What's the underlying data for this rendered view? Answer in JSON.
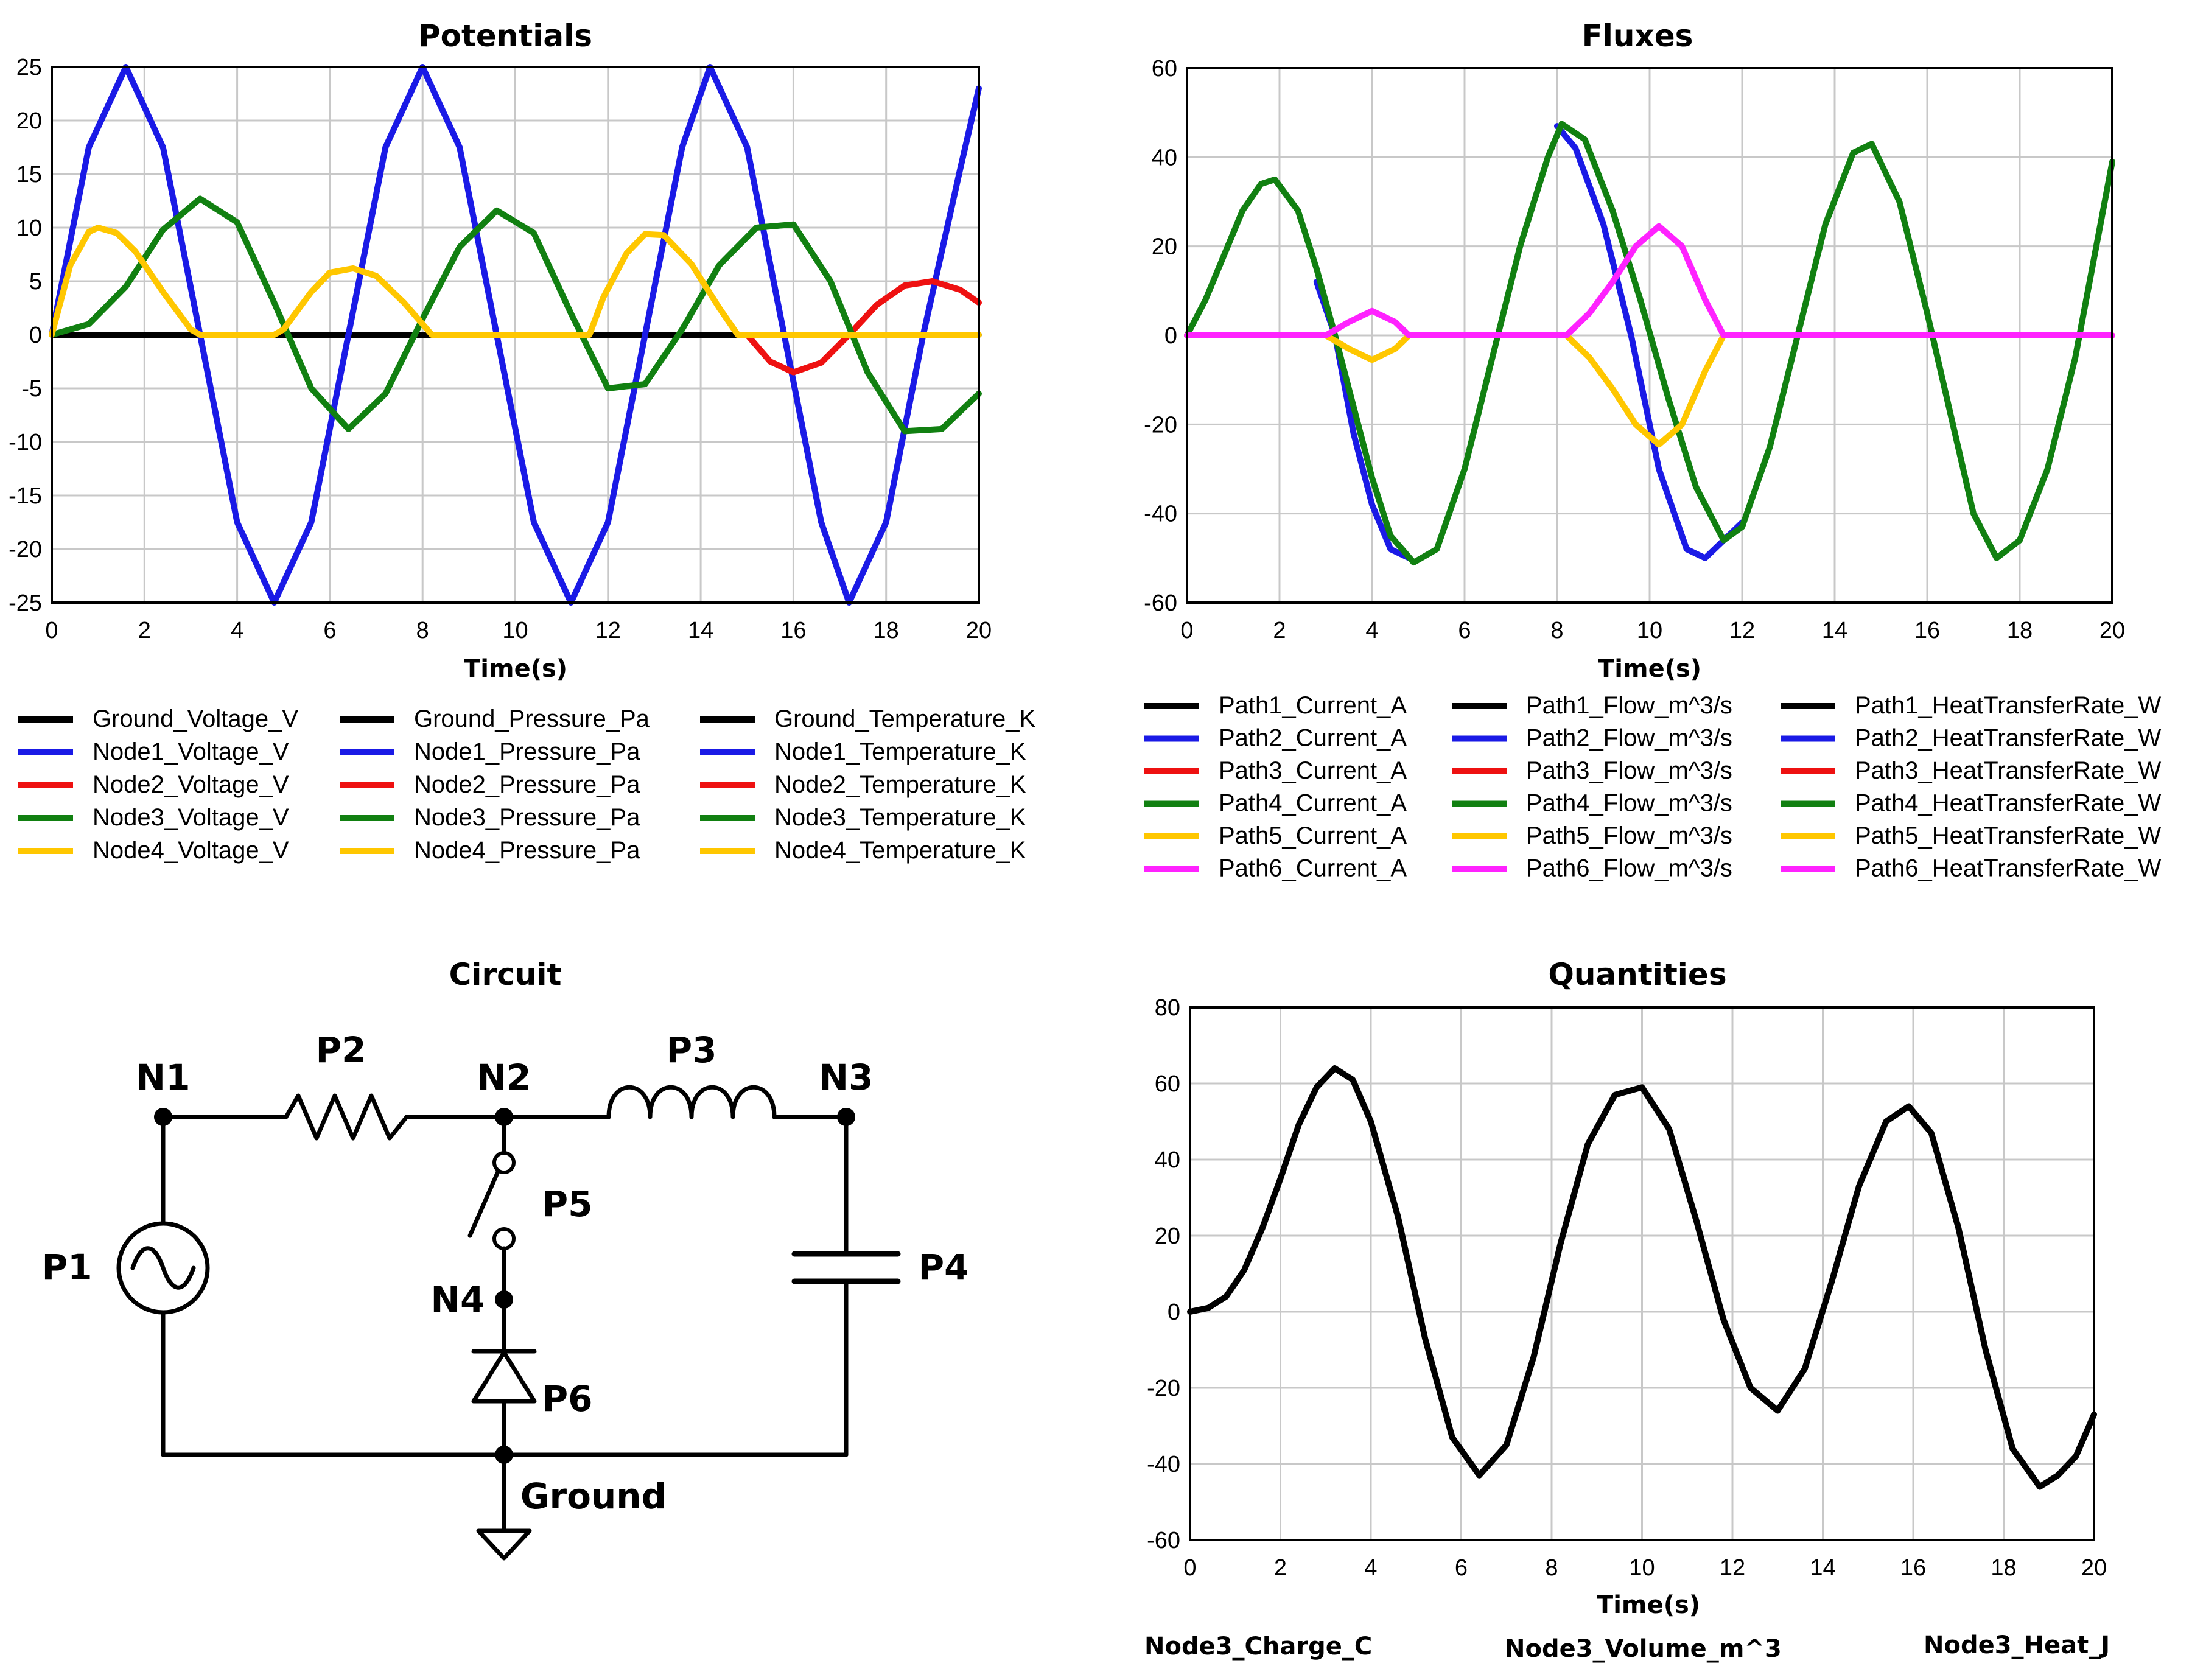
{
  "chart_data": [
    {
      "type": "line",
      "title": "Potentials",
      "xlabel": "Time(s)",
      "ylabel": "",
      "xlim": [
        0,
        20
      ],
      "ylim": [
        -25,
        25
      ],
      "xticks": [
        "0",
        "2",
        "4",
        "6",
        "8",
        "10",
        "12",
        "14",
        "16",
        "18",
        "20"
      ],
      "yticks": [
        "25",
        "20",
        "15",
        "10",
        "5",
        "0",
        "-5",
        "-10",
        "-15",
        "-20",
        "-25"
      ],
      "grid": true,
      "legend_columns": [
        [
          "Ground_Voltage_V",
          "Node1_Voltage_V",
          "Node2_Voltage_V",
          "Node3_Voltage_V",
          "Node4_Voltage_V"
        ],
        [
          "Ground_Pressure_Pa",
          "Node1_Pressure_Pa",
          "Node2_Pressure_Pa",
          "Node3_Pressure_Pa",
          "Node4_Pressure_Pa"
        ],
        [
          "Ground_Temperature_K",
          "Node1_Temperature_K",
          "Node2_Temperature_K",
          "Node3_Temperature_K",
          "Node4_Temperature_K"
        ]
      ],
      "legend_colors": [
        "#000000",
        "#1a1ae6",
        "#ee1111",
        "#118011",
        "#ffc700"
      ],
      "series": [
        {
          "color": "#000000",
          "x": [
            0,
            20
          ],
          "y": [
            0,
            0
          ]
        },
        {
          "color": "#1a1ae6",
          "x": [
            0,
            0.8,
            1.6,
            2.4,
            3.2,
            4.0,
            4.8,
            5.6,
            6.4,
            7.2,
            8.0,
            8.8,
            9.6,
            10.4,
            11.2,
            12.0,
            12.8,
            13.6,
            14.2,
            15.0,
            15.8,
            16.6,
            17.2,
            18.0,
            18.8,
            19.6,
            20.0
          ],
          "y": [
            0,
            17.5,
            25,
            17.5,
            0,
            -17.5,
            -25,
            -17.5,
            0,
            17.5,
            25,
            17.5,
            0,
            -17.5,
            -25,
            -17.5,
            0,
            17.5,
            25,
            17.5,
            0,
            -17.5,
            -25,
            -17.5,
            0,
            15.5,
            23
          ]
        },
        {
          "color": "#ee1111",
          "x": [
            15.0,
            15.5,
            16.0,
            16.6,
            17.2,
            17.8,
            18.4,
            19.0,
            19.6,
            20.0
          ],
          "y": [
            0,
            -2.5,
            -3.5,
            -2.6,
            0,
            2.8,
            4.6,
            5.0,
            4.2,
            3.0
          ]
        },
        {
          "color": "#118011",
          "x": [
            0,
            0.8,
            1.6,
            2.4,
            3.2,
            4.0,
            4.8,
            5.6,
            6.4,
            7.2,
            8.0,
            8.8,
            9.6,
            10.4,
            11.2,
            12.0,
            12.8,
            13.6,
            14.4,
            15.2,
            16.0,
            16.8,
            17.6,
            18.4,
            19.2,
            20.0
          ],
          "y": [
            0,
            1.0,
            4.5,
            9.8,
            12.7,
            10.5,
            3.0,
            -5.0,
            -8.8,
            -5.5,
            1.5,
            8.2,
            11.6,
            9.5,
            2.0,
            -5.0,
            -4.6,
            0.5,
            6.5,
            10.0,
            10.3,
            5.0,
            -3.5,
            -9.0,
            -8.8,
            -5.5
          ]
        },
        {
          "color": "#ffc700",
          "x": [
            0,
            0.4,
            0.8,
            1.0,
            1.4,
            1.8,
            2.4,
            3.0,
            3.2,
            4.8,
            5.0,
            5.6,
            6.0,
            6.5,
            7.0,
            7.6,
            8.2,
            11.6,
            11.9,
            12.4,
            12.8,
            13.2,
            13.8,
            14.4,
            14.8,
            20.0
          ],
          "y": [
            0,
            6.5,
            9.6,
            10.0,
            9.5,
            7.8,
            4.0,
            0.5,
            0,
            0,
            0.5,
            4.0,
            5.8,
            6.2,
            5.5,
            3.0,
            0,
            0,
            3.5,
            7.6,
            9.4,
            9.3,
            6.6,
            2.5,
            0,
            0
          ]
        }
      ]
    },
    {
      "type": "line",
      "title": "Fluxes",
      "xlabel": "Time(s)",
      "ylabel": "",
      "xlim": [
        0,
        20
      ],
      "ylim": [
        -60,
        60
      ],
      "xticks": [
        "0",
        "2",
        "4",
        "6",
        "8",
        "10",
        "12",
        "14",
        "16",
        "18",
        "20"
      ],
      "yticks": [
        "60",
        "40",
        "20",
        "0",
        "-20",
        "-40",
        "-60"
      ],
      "grid": true,
      "legend_columns": [
        [
          "Path1_Current_A",
          "Path2_Current_A",
          "Path3_Current_A",
          "Path4_Current_A",
          "Path5_Current_A",
          "Path6_Current_A"
        ],
        [
          "Path1_Flow_m^3/s",
          "Path2_Flow_m^3/s",
          "Path3_Flow_m^3/s",
          "Path4_Flow_m^3/s",
          "Path5_Flow_m^3/s",
          "Path6_Flow_m^3/s"
        ],
        [
          "Path1_HeatTransferRate_W",
          "Path2_HeatTransferRate_W",
          "Path3_HeatTransferRate_W",
          "Path4_HeatTransferRate_W",
          "Path5_HeatTransferRate_W",
          "Path6_HeatTransferRate_W"
        ]
      ],
      "legend_colors": [
        "#000000",
        "#1a1ae6",
        "#ee1111",
        "#118011",
        "#ffc700",
        "#ff22ff"
      ],
      "series": [
        {
          "color": "#1a1ae6",
          "x": [
            8.0,
            8.4,
            9.0,
            9.6,
            10.2,
            10.8,
            11.2,
            11.6,
            12.0
          ],
          "y": [
            47,
            42,
            25,
            0,
            -30,
            -48,
            -50,
            -46,
            -42
          ]
        },
        {
          "color": "#1a1ae6",
          "x": [
            2.8,
            3.2,
            3.6,
            4.0,
            4.4,
            4.8
          ],
          "y": [
            12,
            0,
            -22,
            -38,
            -48,
            -50
          ]
        },
        {
          "color": "#118011",
          "x": [
            0,
            0.4,
            0.8,
            1.2,
            1.6,
            1.9,
            2.4,
            2.8,
            3.2,
            3.6,
            4.0,
            4.4,
            4.9,
            5.4,
            6.0,
            6.6,
            7.2,
            7.8,
            8.1,
            8.6,
            9.2,
            9.8,
            10.4,
            11.0,
            11.6,
            12.0,
            12.6,
            13.2,
            13.8,
            14.4,
            14.8,
            15.4,
            16.0,
            16.6,
            17.0,
            17.5,
            18.0,
            18.6,
            19.2,
            20.0
          ],
          "y": [
            0,
            8,
            18,
            28,
            34,
            35,
            28,
            15,
            0,
            -16,
            -32,
            -45,
            -51,
            -48,
            -30,
            -5,
            20,
            40,
            47.5,
            44,
            28,
            8,
            -14,
            -34,
            -46,
            -43,
            -25,
            0,
            25,
            41,
            43,
            30,
            5,
            -22,
            -40,
            -50,
            -46,
            -30,
            -5,
            39
          ]
        },
        {
          "color": "#ffc700",
          "x": [
            0,
            3.0,
            3.5,
            4.0,
            4.5,
            4.8,
            8.2,
            8.7,
            9.2,
            9.7,
            10.2,
            10.7,
            11.2,
            11.6,
            20.0
          ],
          "y": [
            0,
            0,
            -3,
            -5.5,
            -3,
            0,
            0,
            -5,
            -12,
            -20,
            -24.5,
            -20,
            -8,
            0,
            0
          ]
        },
        {
          "color": "#ff22ff",
          "x": [
            0,
            3.0,
            3.5,
            4.0,
            4.5,
            4.8,
            8.2,
            8.7,
            9.2,
            9.7,
            10.2,
            10.7,
            11.2,
            11.6,
            20.0
          ],
          "y": [
            0,
            0,
            3,
            5.5,
            3,
            0,
            0,
            5,
            12,
            20,
            24.5,
            20,
            8,
            0,
            0
          ]
        }
      ]
    },
    {
      "type": "line",
      "title": "Quantities",
      "xlabel": "Time(s)",
      "ylabel": "",
      "xlim": [
        0,
        20
      ],
      "ylim": [
        -60,
        80
      ],
      "xticks": [
        "0",
        "2",
        "4",
        "6",
        "8",
        "10",
        "12",
        "14",
        "16",
        "18",
        "20"
      ],
      "yticks": [
        "80",
        "60",
        "40",
        "20",
        "0",
        "-20",
        "-40",
        "-60"
      ],
      "grid": true,
      "legend": [
        "Node3_Charge_C",
        "Node3_Volume_m^3",
        "Node3_Heat_J"
      ],
      "series": [
        {
          "color": "#000000",
          "x": [
            0,
            0.4,
            0.8,
            1.2,
            1.6,
            2.0,
            2.4,
            2.8,
            3.2,
            3.6,
            4.0,
            4.6,
            5.2,
            5.8,
            6.4,
            7.0,
            7.6,
            8.2,
            8.8,
            9.4,
            10.0,
            10.6,
            11.2,
            11.8,
            12.4,
            13.0,
            13.6,
            14.2,
            14.8,
            15.4,
            15.9,
            16.4,
            17.0,
            17.6,
            18.2,
            18.8,
            19.2,
            19.6,
            20.0
          ],
          "y": [
            0,
            1,
            4,
            11,
            22,
            35,
            49,
            59,
            64,
            61,
            50,
            25,
            -7,
            -33,
            -43,
            -35,
            -12,
            18,
            44,
            57,
            59,
            48,
            24,
            -2,
            -20,
            -26,
            -15,
            8,
            33,
            50,
            54,
            47,
            22,
            -10,
            -36,
            -46,
            -43,
            -38,
            -27
          ]
        }
      ]
    }
  ],
  "circuit": {
    "title": "Circuit",
    "nodes": {
      "n1": "N1",
      "n2": "N2",
      "n3": "N3",
      "n4": "N4",
      "ground": "Ground"
    },
    "parts": {
      "p1": "P1",
      "p2": "P2",
      "p3": "P3",
      "p4": "P4",
      "p5": "P5",
      "p6": "P6"
    }
  }
}
